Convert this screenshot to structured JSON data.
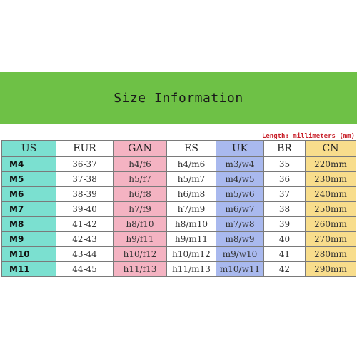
{
  "title": "Size Information",
  "caption": "Length: millimeters (mm)",
  "colors": {
    "banner": "#6ec146",
    "caption": "#c8202a",
    "us": "#7be0d0",
    "gan": "#f4b3c2",
    "uk": "#a9b9ee",
    "cn": "#f8dd8c"
  },
  "table": {
    "headers": [
      "US",
      "EUR",
      "GAN",
      "ES",
      "UK",
      "BR",
      "CN"
    ],
    "rows": [
      [
        "M4",
        "36-37",
        "h4/f6",
        "h4/m6",
        "m3/w4",
        "35",
        "220mm"
      ],
      [
        "M5",
        "37-38",
        "h5/f7",
        "h5/m7",
        "m4/w5",
        "36",
        "230mm"
      ],
      [
        "M6",
        "38-39",
        "h6/f8",
        "h6/m8",
        "m5/w6",
        "37",
        "240mm"
      ],
      [
        "M7",
        "39-40",
        "h7/f9",
        "h7/m9",
        "m6/w7",
        "38",
        "250mm"
      ],
      [
        "M8",
        "41-42",
        "h8/f10",
        "h8/m10",
        "m7/w8",
        "39",
        "260mm"
      ],
      [
        "M9",
        "42-43",
        "h9/f11",
        "h9/m11",
        "m8/w9",
        "40",
        "270mm"
      ],
      [
        "M10",
        "43-44",
        "h10/f12",
        "h10/m12",
        "m9/w10",
        "41",
        "280mm"
      ],
      [
        "M11",
        "44-45",
        "h11/f13",
        "h11/m13",
        "m10/w11",
        "42",
        "290mm"
      ]
    ]
  }
}
